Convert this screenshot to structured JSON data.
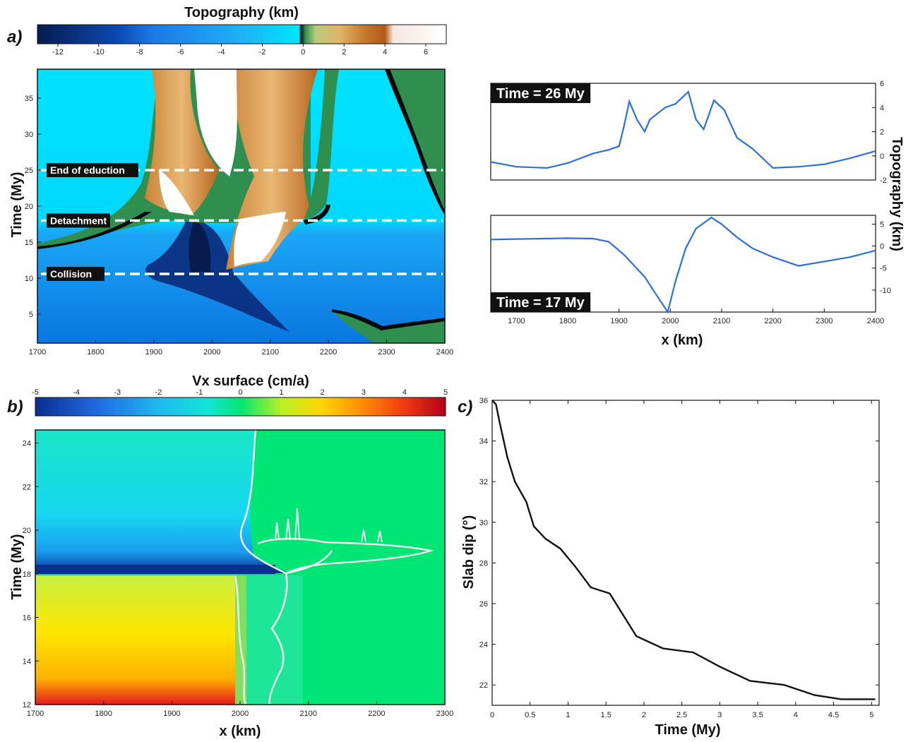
{
  "panels": {
    "a": "a)",
    "b": "b)",
    "c": "c)"
  },
  "topo_colorbar": {
    "title": "Topography (km)",
    "ticks": [
      "-12",
      "-10",
      "-8",
      "-6",
      "-4",
      "-2",
      "0",
      "2",
      "4",
      "6"
    ],
    "range": [
      -13,
      7
    ]
  },
  "vx_colorbar": {
    "title": "Vx surface (cm/a)",
    "ticks": [
      "-5",
      "-4",
      "-3",
      "-2",
      "-1",
      "0",
      "1",
      "2",
      "3",
      "4",
      "5"
    ],
    "range": [
      -5,
      5
    ]
  },
  "colors": {
    "deep_ocean": "#0a1e5a",
    "ocean": "#1e7ae8",
    "shallow": "#00e6ff",
    "coast_green": "#2e8b57",
    "land_brown": "#c8883c",
    "high_white": "#ffffff",
    "vx_green": "#00e676",
    "vx_red": "#e31a1c",
    "profile_blue": "#2a6fdb"
  },
  "chart_data": [
    {
      "type": "heatmap",
      "id": "a-map",
      "xlabel": "",
      "ylabel": "Time (My)",
      "x_ticks": [
        "1700",
        "1800",
        "1900",
        "2000",
        "2100",
        "2200",
        "2300",
        "2400"
      ],
      "y_ticks": [
        "5",
        "10",
        "15",
        "20",
        "25",
        "30",
        "35"
      ],
      "xlim": [
        1700,
        2400
      ],
      "ylim": [
        1,
        39
      ],
      "annotations": [
        {
          "label": "End of eduction",
          "time": 25
        },
        {
          "label": "Detachment",
          "time": 18
        },
        {
          "label": "Collision",
          "time": 10.6
        }
      ]
    },
    {
      "type": "line",
      "id": "a-profile-top",
      "label": "Time = 26 My",
      "xlim": [
        1650,
        2400
      ],
      "ylim": [
        -2,
        6
      ],
      "y_ticks": [
        "-2",
        "0",
        "2",
        "4",
        "6"
      ],
      "x": [
        1650,
        1700,
        1760,
        1800,
        1850,
        1880,
        1900,
        1910,
        1920,
        1935,
        1950,
        1960,
        1975,
        1990,
        2010,
        2035,
        2050,
        2065,
        2085,
        2105,
        2130,
        2160,
        2200,
        2250,
        2300,
        2350,
        2400
      ],
      "y": [
        -0.5,
        -0.9,
        -1.0,
        -0.6,
        0.2,
        0.5,
        0.8,
        2.5,
        4.5,
        3.0,
        2.0,
        3.0,
        3.5,
        4.0,
        4.3,
        5.3,
        3.0,
        2.2,
        4.6,
        3.8,
        1.5,
        0.6,
        -1.0,
        -0.9,
        -0.7,
        -0.2,
        0.4
      ]
    },
    {
      "type": "line",
      "id": "a-profile-bottom",
      "label": "Time = 17 My",
      "xlim": [
        1650,
        2400
      ],
      "ylim": [
        -15,
        7
      ],
      "y_ticks": [
        "-10",
        "-5",
        "0",
        "5"
      ],
      "xlabel": "x (km)",
      "ylabel": "Topography (km)",
      "x_ticks": [
        "1700",
        "1800",
        "1900",
        "2000",
        "2100",
        "2200",
        "2300",
        "2400"
      ],
      "x": [
        1650,
        1700,
        1800,
        1850,
        1880,
        1910,
        1950,
        1975,
        1995,
        2010,
        2030,
        2050,
        2080,
        2100,
        2130,
        2160,
        2200,
        2250,
        2300,
        2350,
        2400
      ],
      "y": [
        1.5,
        1.6,
        1.8,
        1.7,
        1.0,
        -2.0,
        -7.0,
        -11.5,
        -15.0,
        -8.0,
        -0.5,
        4.0,
        6.5,
        5.0,
        2.0,
        -0.5,
        -2.5,
        -4.5,
        -3.5,
        -2.5,
        -1.0
      ]
    },
    {
      "type": "heatmap",
      "id": "b-map",
      "xlabel": "x (km)",
      "ylabel": "Time (My)",
      "x_ticks": [
        "1700",
        "1800",
        "1900",
        "2000",
        "2100",
        "2200",
        "2300"
      ],
      "y_ticks": [
        "12",
        "14",
        "16",
        "18",
        "20",
        "22",
        "24"
      ],
      "xlim": [
        1700,
        2300
      ],
      "ylim": [
        12,
        24.6
      ]
    },
    {
      "type": "line",
      "id": "c-dip",
      "xlabel": "Time (My)",
      "ylabel": "Slab dip (°)",
      "x_ticks": [
        "0",
        "0.5",
        "1",
        "1.5",
        "2",
        "2.5",
        "3",
        "3.5",
        "4",
        "4.5",
        "5"
      ],
      "y_ticks": [
        "22",
        "24",
        "26",
        "28",
        "30",
        "32",
        "34",
        "36"
      ],
      "xlim": [
        0,
        5.1
      ],
      "ylim": [
        21,
        36
      ],
      "x": [
        0,
        0.05,
        0.1,
        0.2,
        0.3,
        0.45,
        0.55,
        0.7,
        0.9,
        1.1,
        1.3,
        1.55,
        1.9,
        2.25,
        2.65,
        3.0,
        3.4,
        3.85,
        4.25,
        4.6,
        5.05
      ],
      "y": [
        36,
        35.8,
        34.9,
        33.2,
        32.0,
        31.0,
        29.8,
        29.2,
        28.7,
        27.8,
        26.8,
        26.5,
        24.4,
        23.8,
        23.6,
        22.9,
        22.2,
        22.0,
        21.5,
        21.3,
        21.3
      ]
    }
  ]
}
